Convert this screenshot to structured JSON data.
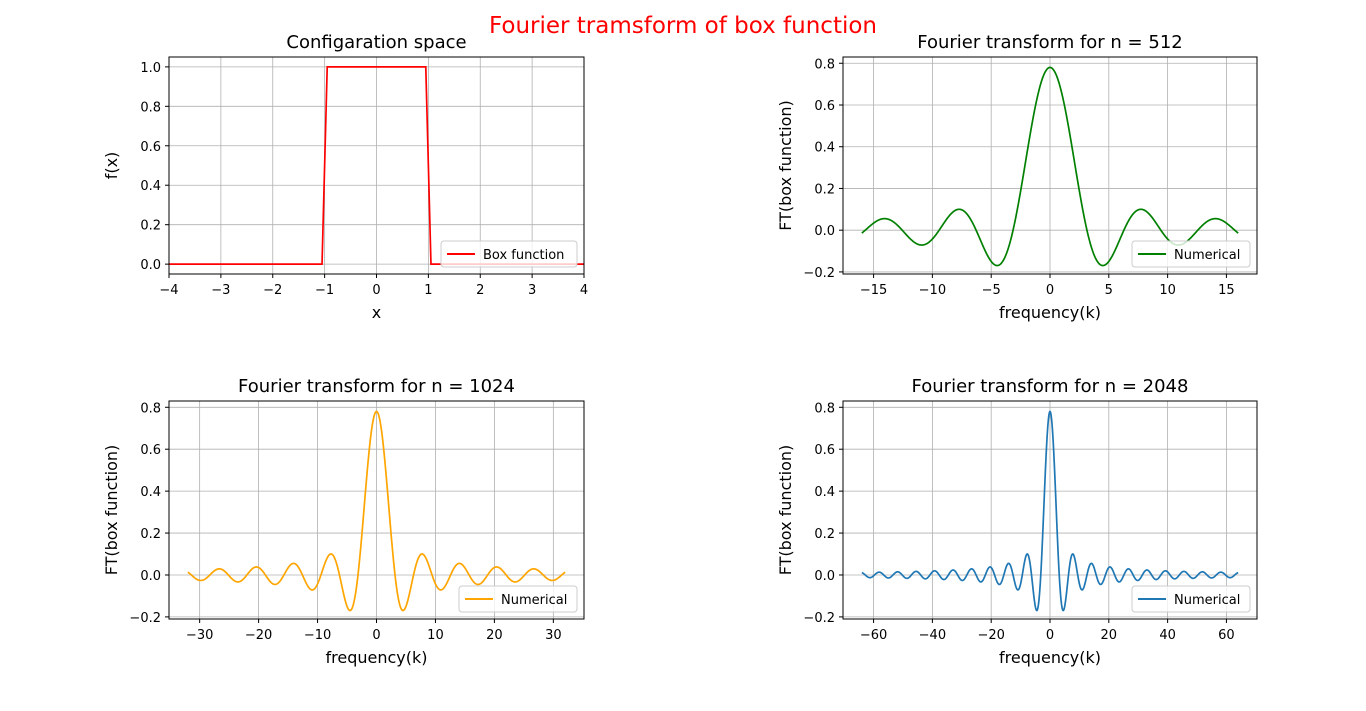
{
  "suptitle": {
    "text": "Fourier tramsform of box function",
    "color": "#ff0000"
  },
  "chart_data": [
    {
      "type": "line",
      "title": "Configaration space",
      "xlabel": "x",
      "ylabel": "f(x)",
      "xlim": [
        -4,
        4
      ],
      "ylim": [
        -0.05,
        1.05
      ],
      "xticks": [
        -4,
        -3,
        -2,
        -1,
        0,
        1,
        2,
        3,
        4
      ],
      "yticks": [
        0.0,
        0.2,
        0.4,
        0.6,
        0.8,
        1.0
      ],
      "xtick_labels": [
        "−4",
        "−3",
        "−2",
        "−1",
        "0",
        "1",
        "2",
        "3",
        "4"
      ],
      "ytick_labels": [
        "0.0",
        "0.2",
        "0.4",
        "0.6",
        "0.8",
        "1.0"
      ],
      "grid": true,
      "legend": {
        "loc": "lower-right",
        "entries": [
          "Box function"
        ]
      },
      "series": [
        {
          "name": "Box function",
          "color": "#ff0000",
          "x": [
            -4,
            -1.05,
            -0.95,
            0.95,
            1.05,
            4
          ],
          "y": [
            0,
            0,
            1,
            1,
            0,
            0
          ]
        }
      ]
    },
    {
      "type": "line",
      "title": "Fourier transform for n = 512",
      "xlabel": "frequency(k)",
      "ylabel": "FT(box function)",
      "xlim": [
        -17.6,
        17.6
      ],
      "ylim": [
        -0.21,
        0.83
      ],
      "xticks": [
        -15,
        -10,
        -5,
        0,
        5,
        10,
        15
      ],
      "yticks": [
        -0.2,
        0.0,
        0.2,
        0.4,
        0.6,
        0.8
      ],
      "xtick_labels": [
        "−15",
        "−10",
        "−5",
        "0",
        "5",
        "10",
        "15"
      ],
      "ytick_labels": [
        "−0.2",
        "0.0",
        "0.2",
        "0.4",
        "0.6",
        "0.8"
      ],
      "grid": true,
      "legend": {
        "loc": "lower-right",
        "entries": [
          "Numerical"
        ]
      },
      "function": "sinc",
      "amplitude": 0.78,
      "x_range": [
        -16,
        16
      ],
      "series": [
        {
          "name": "Numerical",
          "color": "#008000"
        }
      ]
    },
    {
      "type": "line",
      "title": "Fourier transform for n = 1024",
      "xlabel": "frequency(k)",
      "ylabel": "FT(box function)",
      "xlim": [
        -35.2,
        35.2
      ],
      "ylim": [
        -0.21,
        0.83
      ],
      "xticks": [
        -30,
        -20,
        -10,
        0,
        10,
        20,
        30
      ],
      "yticks": [
        -0.2,
        0.0,
        0.2,
        0.4,
        0.6,
        0.8
      ],
      "xtick_labels": [
        "−30",
        "−20",
        "−10",
        "0",
        "10",
        "20",
        "30"
      ],
      "ytick_labels": [
        "−0.2",
        "0.0",
        "0.2",
        "0.4",
        "0.6",
        "0.8"
      ],
      "grid": true,
      "legend": {
        "loc": "lower-right",
        "entries": [
          "Numerical"
        ]
      },
      "function": "sinc",
      "amplitude": 0.78,
      "x_range": [
        -32,
        32
      ],
      "series": [
        {
          "name": "Numerical",
          "color": "#ffa500"
        }
      ]
    },
    {
      "type": "line",
      "title": "Fourier transform for n = 2048",
      "xlabel": "frequency(k)",
      "ylabel": "FT(box function)",
      "xlim": [
        -70.4,
        70.4
      ],
      "ylim": [
        -0.21,
        0.83
      ],
      "xticks": [
        -60,
        -40,
        -20,
        0,
        20,
        40,
        60
      ],
      "yticks": [
        -0.2,
        0.0,
        0.2,
        0.4,
        0.6,
        0.8
      ],
      "xtick_labels": [
        "−60",
        "−40",
        "−20",
        "0",
        "20",
        "40",
        "60"
      ],
      "ytick_labels": [
        "−0.2",
        "0.0",
        "0.2",
        "0.4",
        "0.6",
        "0.8"
      ],
      "grid": true,
      "legend": {
        "loc": "lower-right",
        "entries": [
          "Numerical"
        ]
      },
      "function": "sinc",
      "amplitude": 0.78,
      "x_range": [
        -64,
        64
      ],
      "series": [
        {
          "name": "Numerical",
          "color": "#1f77b4"
        }
      ]
    }
  ]
}
